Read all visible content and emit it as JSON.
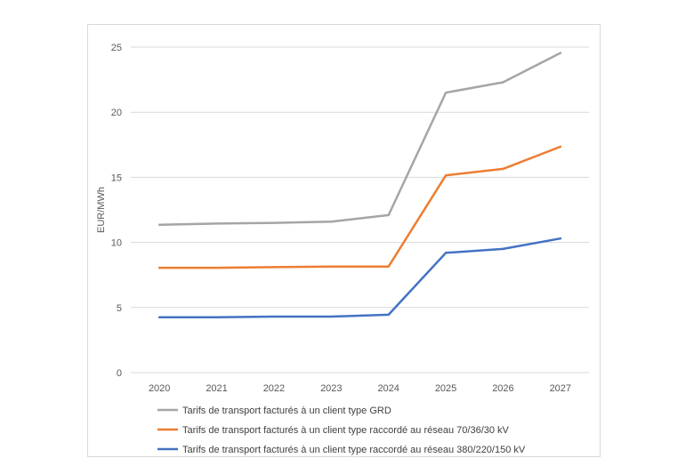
{
  "chart_data": {
    "type": "line",
    "title": "",
    "xlabel": "",
    "ylabel": "EUR/MWh",
    "ylim": [
      0,
      25
    ],
    "yticks": [
      0,
      5,
      10,
      15,
      20,
      25
    ],
    "categories": [
      "2020",
      "2021",
      "2022",
      "2023",
      "2024",
      "2025",
      "2026",
      "2027"
    ],
    "grid": true,
    "legend_position": "bottom",
    "series": [
      {
        "name": "Tarifs de transport facturés à un client type GRD",
        "color": "#a5a5a5",
        "values": [
          11.35,
          11.45,
          11.5,
          11.6,
          12.1,
          21.5,
          22.3,
          24.55
        ]
      },
      {
        "name": "Tarifs de transport facturés à un client type raccordé au réseau 70/36/30 kV",
        "color": "#ed7d31",
        "values": [
          8.05,
          8.05,
          8.1,
          8.15,
          8.15,
          15.15,
          15.65,
          17.35
        ]
      },
      {
        "name": "Tarifs de transport facturés à un client type raccordé au réseau 380/220/150 kV",
        "color": "#4472c4",
        "values": [
          4.25,
          4.25,
          4.3,
          4.3,
          4.45,
          9.2,
          9.5,
          10.3
        ]
      }
    ]
  }
}
